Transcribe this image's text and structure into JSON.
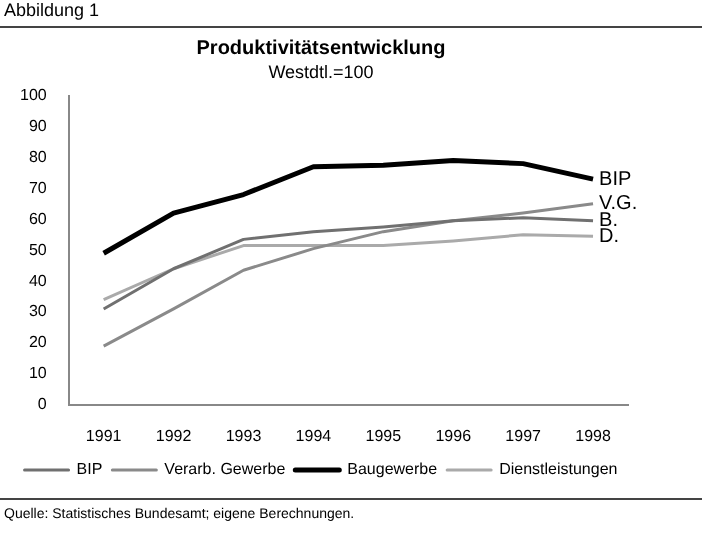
{
  "chart_data": {
    "type": "line",
    "title": "Produktivitätsentwicklung",
    "subtitle": "Westdtl.=100",
    "categories": [
      "1991",
      "1992",
      "1993",
      "1994",
      "1995",
      "1996",
      "1997",
      "1998"
    ],
    "series": [
      {
        "name": "BIP",
        "color": "#707070",
        "values": [
          31,
          44,
          53.5,
          56,
          57.5,
          59.5,
          60.5,
          59.5
        ]
      },
      {
        "name": "Verarb. Gewerbe",
        "color": "#8a8a8a",
        "values": [
          19,
          31,
          43.5,
          50.5,
          56,
          59.5,
          62,
          65
        ]
      },
      {
        "name": "Baugewerbe",
        "color": "#000000",
        "values": [
          49,
          62,
          68,
          77,
          77.5,
          79,
          78,
          73
        ]
      },
      {
        "name": "Dienstleistungen",
        "color": "#aaaaaa",
        "values": [
          34,
          44,
          51.5,
          51.5,
          51.5,
          53,
          55,
          54.5
        ]
      }
    ],
    "ylim": [
      0,
      100
    ],
    "yticks": [
      0,
      10,
      20,
      30,
      40,
      50,
      60,
      70,
      80,
      90,
      100
    ],
    "grid": false,
    "legend": "bottom",
    "marker": "none",
    "line_style": "solid",
    "annotations": [
      "Abbildung 1",
      "Quelle: Statistisches Bundesamt; eigene Berechnungen.",
      {
        "text": "BIP",
        "x": "1998",
        "y": 73
      },
      {
        "text": "V.G.",
        "x": "1998",
        "y": 65
      },
      {
        "text": "B.",
        "x": "1998",
        "y": 59.5
      },
      {
        "text": "D.",
        "x": "1998",
        "y": 54.5
      }
    ]
  }
}
